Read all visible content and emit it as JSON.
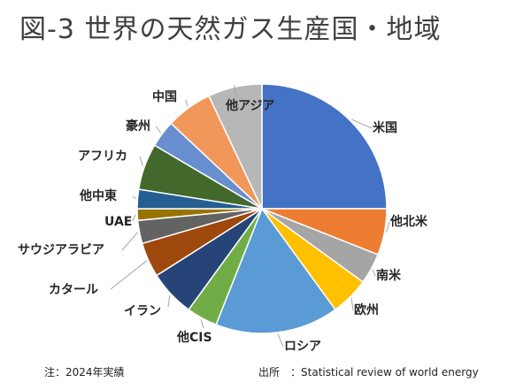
{
  "title": "図-3 世界の天然ガス生産国・地域",
  "footer": {
    "note": "注：2024年実績",
    "source_label": "出所",
    "source_text": "：Statistical review of world energy"
  },
  "chart_data": {
    "type": "pie",
    "title": "図-3 世界の天然ガス生産国・地域",
    "start": "12 o'clock, clockwise",
    "legend": "none (labels beside slices)",
    "unit": "percent share (estimated from slice angles)",
    "slices": [
      {
        "label": "米国",
        "value": 25.0,
        "color": "#4472C4"
      },
      {
        "label": "他北米",
        "value": 6.0,
        "color": "#ED7D31"
      },
      {
        "label": "南米",
        "value": 4.0,
        "color": "#A5A5A5"
      },
      {
        "label": "欧州",
        "value": 5.0,
        "color": "#FFC000"
      },
      {
        "label": "ロシア",
        "value": 16.0,
        "color": "#5B9BD5"
      },
      {
        "label": "他CIS",
        "value": 4.0,
        "color": "#70AD47"
      },
      {
        "label": "イラン",
        "value": 6.0,
        "color": "#264478"
      },
      {
        "label": "カタール",
        "value": 4.5,
        "color": "#9E480E"
      },
      {
        "label": "サウジアラビア",
        "value": 3.0,
        "color": "#636363"
      },
      {
        "label": "UAE",
        "value": 1.5,
        "color": "#997300"
      },
      {
        "label": "他中東",
        "value": 2.5,
        "color": "#255E91"
      },
      {
        "label": "アフリカ",
        "value": 6.0,
        "color": "#43682B"
      },
      {
        "label": "豪州",
        "value": 3.5,
        "color": "#698ED0"
      },
      {
        "label": "中国",
        "value": 6.0,
        "color": "#F1975A"
      },
      {
        "label": "他アジア",
        "value": 7.0,
        "color": "#B7B7B7"
      }
    ]
  }
}
